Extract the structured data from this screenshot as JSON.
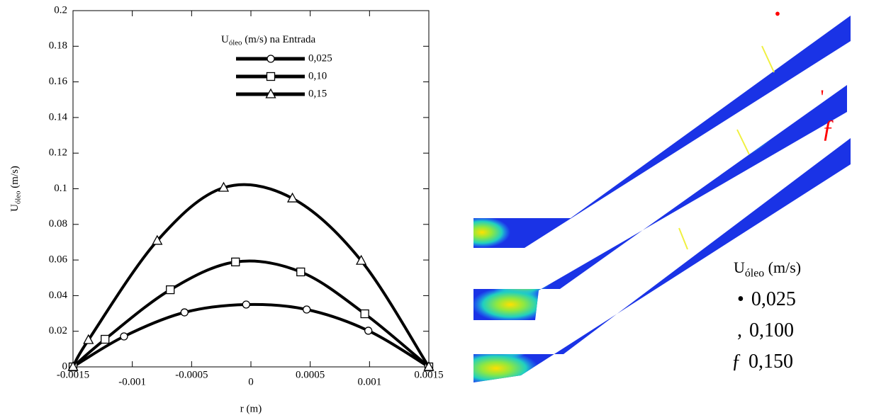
{
  "chart_data": {
    "type": "line",
    "xlabel": "r (m)",
    "ylabel": {
      "main": "U",
      "sub": "óleo",
      "rest": " (m/s)"
    },
    "legend_title": {
      "main": "U",
      "sub": "óleo",
      "rest": " (m/s) na Entrada"
    },
    "xlim": [
      -0.0015,
      0.0015
    ],
    "ylim": [
      0,
      0.2
    ],
    "xticks": [
      -0.0015,
      -0.001,
      -0.0005,
      0,
      0.0005,
      0.001,
      0.0015
    ],
    "yticks": [
      0,
      0.02,
      0.04,
      0.06,
      0.08,
      0.1,
      0.12,
      0.14,
      0.16,
      0.18,
      0.2
    ],
    "series": [
      {
        "name": "0,025",
        "color": "#000000",
        "marker": "circle",
        "x": [
          -0.0015,
          -0.00107,
          -0.00056,
          -4e-05,
          0.00047,
          0.00099,
          0.0015
        ],
        "values": [
          0,
          0.0171,
          0.0306,
          0.035,
          0.0322,
          0.0203,
          0
        ]
      },
      {
        "name": "0,10",
        "color": "#000000",
        "marker": "square",
        "x": [
          -0.0015,
          -0.00123,
          -0.00068,
          -0.00013,
          0.00042,
          0.00096,
          0.0015
        ],
        "values": [
          0,
          0.0155,
          0.0433,
          0.0589,
          0.0533,
          0.0298,
          0
        ]
      },
      {
        "name": "0,15",
        "color": "#000000",
        "marker": "triangle",
        "x": [
          -0.0015,
          -0.00137,
          -0.00079,
          -0.00023,
          0.00035,
          0.00093,
          0.0015
        ],
        "values": [
          0,
          0.0151,
          0.0708,
          0.1006,
          0.0946,
          0.0596,
          0
        ]
      }
    ]
  },
  "figure_b": {
    "legend_title": {
      "main": "U",
      "sub": "óleo",
      "rest": " (m/s)"
    },
    "entries": [
      {
        "symbol": "•",
        "label": "0,025"
      },
      {
        "symbol": ",",
        "label": "0,100"
      },
      {
        "symbol": "ƒ",
        "label": "0,150"
      }
    ],
    "markers": [
      "•",
      "'",
      "ƒ"
    ]
  }
}
